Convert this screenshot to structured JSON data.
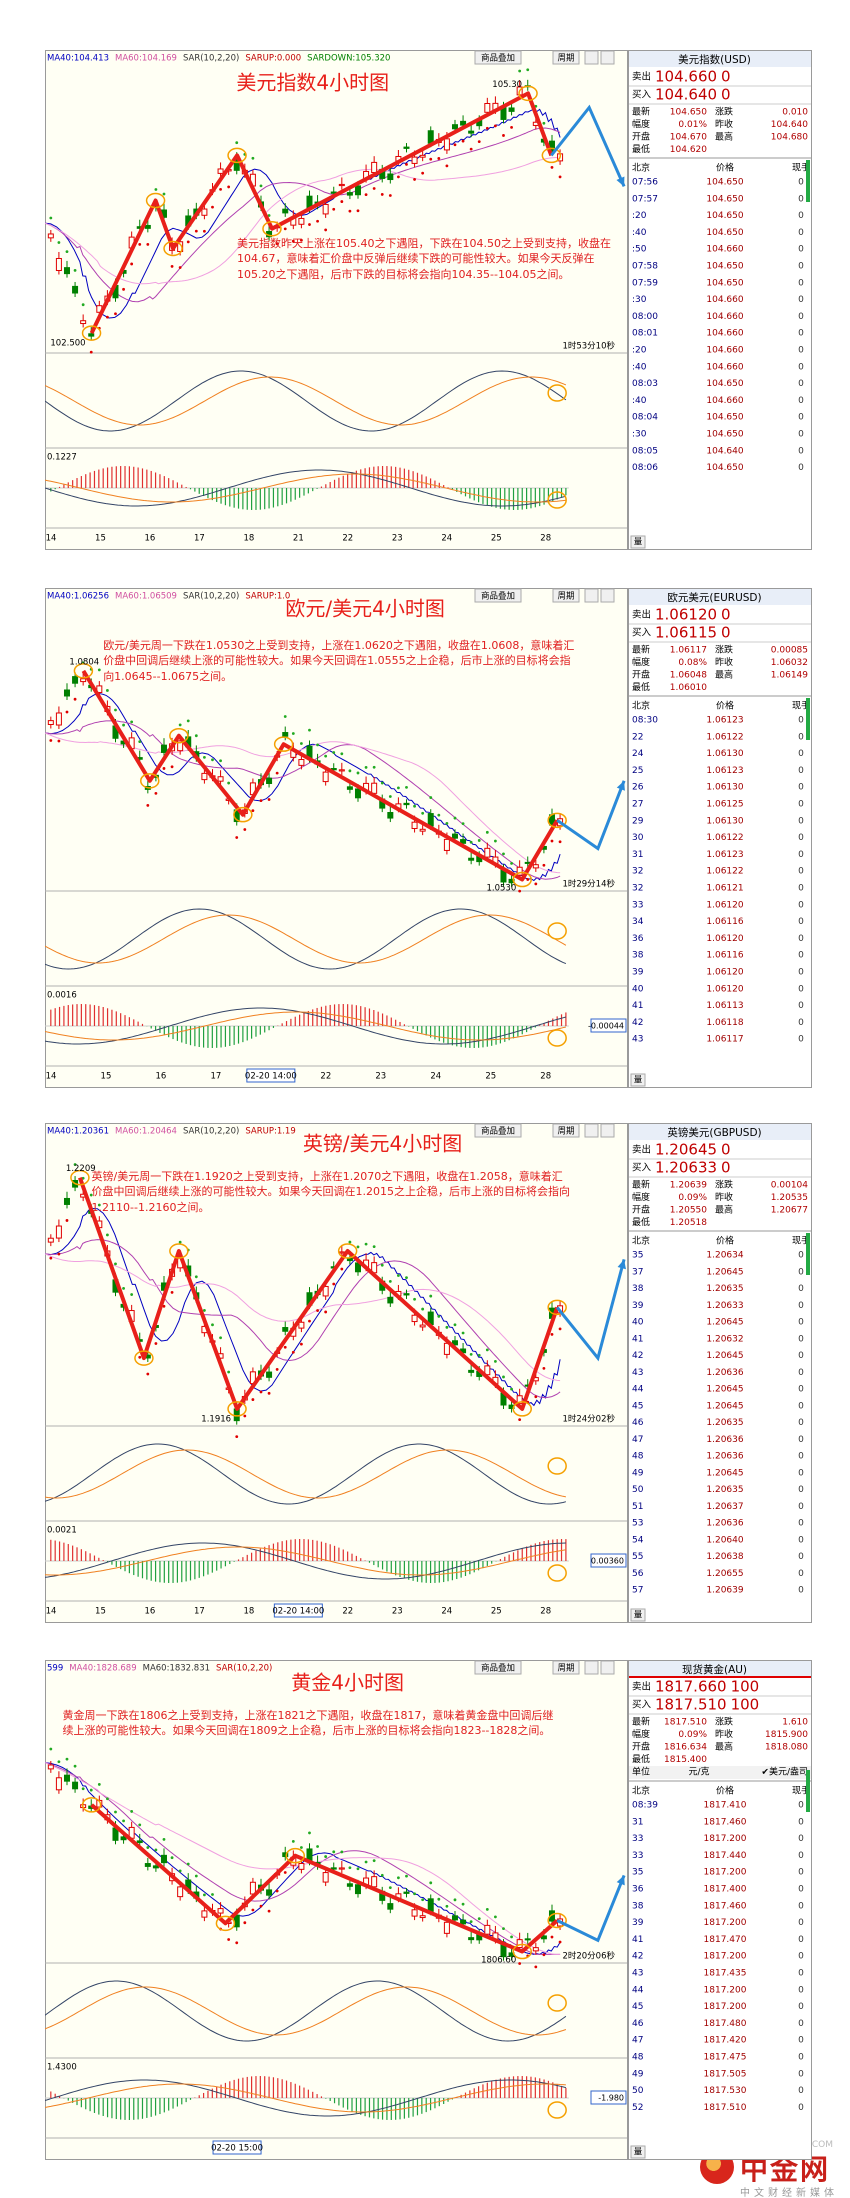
{
  "panels": [
    {
      "title": "美元指数4小时图",
      "legend": [
        "MA40:104.413",
        "MA60:104.169",
        "SAR(10,2,20)",
        "SARUP:0.000",
        "SARDOWN:105.320"
      ],
      "toolbar": [
        "商品叠加",
        "周期"
      ],
      "comment": "美元指数昨天上涨在105.40之下遇阻，下跌在104.50之上受到支持，收盘在104.67，意味着汇价盘中反弹后继续下跌的可能性较大。如果今天反弹在105.20之下遇阻，后市下跌的目标将会指向104.35--104.05之间。",
      "high_label": "105.30",
      "low_label": "102.500",
      "countdown": "1时53分10秒",
      "indicator_label": "0.1227",
      "dates": [
        "14",
        "15",
        "16",
        "17",
        "18",
        "21",
        "22",
        "23",
        "24",
        "25",
        "28"
      ],
      "quote": {
        "name": "美元指数(USD)",
        "sell": [
          "卖出",
          "104.660",
          "0"
        ],
        "buy": [
          "买入",
          "104.640",
          "0"
        ],
        "stats": [
          [
            "最新",
            "104.650",
            "涨跌",
            "0.010"
          ],
          [
            "幅度",
            "0.01%",
            "昨收",
            "104.640"
          ],
          [
            "开盘",
            "104.670",
            "最高",
            "104.680"
          ],
          [
            "最低",
            "104.620"
          ]
        ],
        "tick_header": [
          "北京",
          "价格",
          "现手"
        ],
        "ticks": [
          [
            "07:56",
            "104.650",
            "0"
          ],
          [
            "07:57",
            "104.650",
            "0"
          ],
          [
            ":20",
            "104.650",
            "0"
          ],
          [
            ":40",
            "104.650",
            "0"
          ],
          [
            ":50",
            "104.660",
            "0"
          ],
          [
            "07:58",
            "104.650",
            "0"
          ],
          [
            "07:59",
            "104.650",
            "0"
          ],
          [
            ":30",
            "104.660",
            "0"
          ],
          [
            "08:00",
            "104.660",
            "0"
          ],
          [
            "08:01",
            "104.660",
            "0"
          ],
          [
            ":20",
            "104.660",
            "0"
          ],
          [
            ":40",
            "104.660",
            "0"
          ],
          [
            "08:03",
            "104.650",
            "0"
          ],
          [
            ":40",
            "104.660",
            "0"
          ],
          [
            "08:04",
            "104.650",
            "0"
          ],
          [
            ":30",
            "104.650",
            "0"
          ],
          [
            "08:05",
            "104.640",
            "0"
          ],
          [
            "08:06",
            "104.650",
            "0"
          ]
        ],
        "footer": "量"
      }
    },
    {
      "title": "欧元/美元4小时图",
      "legend": [
        "MA40:1.06256",
        "MA60:1.06509",
        "SAR(10,2,20)",
        "SARUP:1.0"
      ],
      "toolbar": [
        "商品叠加",
        "周期"
      ],
      "comment": "欧元/美元周一下跌在1.0530之上受到支持，上涨在1.0620之下遇阻，收盘在1.0608，意味着汇价盘中回调后继续上涨的可能性较大。如果今天回调在1.0555之上企稳，后市上涨的目标将会指向1.0645--1.0675之间。",
      "high_label": "1.0804",
      "low_label": "1.0530",
      "countdown": "1时29分14秒",
      "indicator_label": "0.0016",
      "indicator_box": "-0.00044",
      "dates": [
        "14",
        "15",
        "16",
        "17",
        "02-20 14:00",
        "22",
        "23",
        "24",
        "25",
        "28"
      ],
      "quote": {
        "name": "欧元美元(EURUSD)",
        "sell": [
          "卖出",
          "1.06120",
          "0"
        ],
        "buy": [
          "买入",
          "1.06115",
          "0"
        ],
        "stats": [
          [
            "最新",
            "1.06117",
            "涨跌",
            "0.00085"
          ],
          [
            "幅度",
            "0.08%",
            "昨收",
            "1.06032"
          ],
          [
            "开盘",
            "1.06048",
            "最高",
            "1.06149"
          ],
          [
            "最低",
            "1.06010"
          ]
        ],
        "tick_header": [
          "北京",
          "价格",
          "现手"
        ],
        "ticks": [
          [
            "08:30",
            "1.06123",
            "0"
          ],
          [
            "22",
            "1.06122",
            "0"
          ],
          [
            "24",
            "1.06130",
            "0"
          ],
          [
            "25",
            "1.06123",
            "0"
          ],
          [
            "26",
            "1.06130",
            "0"
          ],
          [
            "27",
            "1.06125",
            "0"
          ],
          [
            "29",
            "1.06130",
            "0"
          ],
          [
            "30",
            "1.06122",
            "0"
          ],
          [
            "31",
            "1.06123",
            "0"
          ],
          [
            "32",
            "1.06122",
            "0"
          ],
          [
            "32",
            "1.06121",
            "0"
          ],
          [
            "33",
            "1.06120",
            "0"
          ],
          [
            "34",
            "1.06116",
            "0"
          ],
          [
            "36",
            "1.06120",
            "0"
          ],
          [
            "38",
            "1.06116",
            "0"
          ],
          [
            "39",
            "1.06120",
            "0"
          ],
          [
            "40",
            "1.06120",
            "0"
          ],
          [
            "41",
            "1.06113",
            "0"
          ],
          [
            "42",
            "1.06118",
            "0"
          ],
          [
            "43",
            "1.06117",
            "0"
          ]
        ],
        "footer": "量"
      }
    },
    {
      "title": "英镑/美元4小时图",
      "legend": [
        "MA40:1.20361",
        "MA60:1.20464",
        "SAR(10,2,20)",
        "SARUP:1.19"
      ],
      "toolbar": [
        "商品叠加",
        "周期"
      ],
      "comment": "英镑/美元周一下跌在1.1920之上受到支持，上涨在1.2070之下遇阻，收盘在1.2058，意味着汇价盘中回调后继续上涨的可能性较大。如果今天回调在1.2015之上企稳，后市上涨的目标将会指向1.2110--1.2160之间。",
      "high_label": "1.2209",
      "low_label": "1.1916",
      "countdown": "1时24分02秒",
      "indicator_label": "0.0021",
      "indicator_box": "0.00360",
      "dates": [
        "14",
        "15",
        "16",
        "17",
        "18",
        "02-20 14:00",
        "22",
        "23",
        "24",
        "25",
        "28"
      ],
      "quote": {
        "name": "英镑美元(GBPUSD)",
        "sell": [
          "卖出",
          "1.20645",
          "0"
        ],
        "buy": [
          "买入",
          "1.20633",
          "0"
        ],
        "stats": [
          [
            "最新",
            "1.20639",
            "涨跌",
            "0.00104"
          ],
          [
            "幅度",
            "0.09%",
            "昨收",
            "1.20535"
          ],
          [
            "开盘",
            "1.20550",
            "最高",
            "1.20677"
          ],
          [
            "最低",
            "1.20518"
          ]
        ],
        "tick_header": [
          "北京",
          "价格",
          "现手"
        ],
        "ticks": [
          [
            "35",
            "1.20634",
            "0"
          ],
          [
            "37",
            "1.20645",
            "0"
          ],
          [
            "38",
            "1.20635",
            "0"
          ],
          [
            "39",
            "1.20633",
            "0"
          ],
          [
            "40",
            "1.20645",
            "0"
          ],
          [
            "41",
            "1.20632",
            "0"
          ],
          [
            "42",
            "1.20645",
            "0"
          ],
          [
            "43",
            "1.20636",
            "0"
          ],
          [
            "44",
            "1.20645",
            "0"
          ],
          [
            "45",
            "1.20645",
            "0"
          ],
          [
            "46",
            "1.20635",
            "0"
          ],
          [
            "47",
            "1.20636",
            "0"
          ],
          [
            "48",
            "1.20636",
            "0"
          ],
          [
            "49",
            "1.20645",
            "0"
          ],
          [
            "50",
            "1.20635",
            "0"
          ],
          [
            "51",
            "1.20637",
            "0"
          ],
          [
            "53",
            "1.20636",
            "0"
          ],
          [
            "54",
            "1.20640",
            "0"
          ],
          [
            "55",
            "1.20638",
            "0"
          ],
          [
            "56",
            "1.20655",
            "0"
          ],
          [
            "57",
            "1.20639",
            "0"
          ]
        ],
        "footer": "量"
      }
    },
    {
      "title": "黄金4小时图",
      "legend": [
        "599",
        "MA40:1828.689",
        "MA60:1832.831",
        "SAR(10,2,20)"
      ],
      "toolbar": [
        "商品叠加",
        "周期"
      ],
      "comment": "黄金周一下跌在1806之上受到支持，上涨在1821之下遇阻，收盘在1817，意味着黄金盘中回调后继续上涨的可能性较大。如果今天回调在1809之上企稳，后市上涨的目标将会指向1823--1828之间。",
      "low_label": "1806.60",
      "countdown": "2时20分06秒",
      "indicator_label": "1.4300",
      "indicator_box": "-1.980",
      "dates": [
        "02-20 15:00"
      ],
      "quote": {
        "name": "现货黄金(AU)",
        "sell": [
          "卖出",
          "1817.660",
          "100"
        ],
        "buy": [
          "买入",
          "1817.510",
          "100"
        ],
        "stats": [
          [
            "最新",
            "1817.510",
            "涨跌",
            "1.610"
          ],
          [
            "幅度",
            "0.09%",
            "昨收",
            "1815.900"
          ],
          [
            "开盘",
            "1816.634",
            "最高",
            "1818.080"
          ],
          [
            "最低",
            "1815.400"
          ]
        ],
        "unit": [
          "单位",
          "元/克",
          "✔美元/盎司"
        ],
        "tick_header": [
          "北京",
          "价格",
          "现手"
        ],
        "ticks": [
          [
            "08:39",
            "1817.410",
            "0"
          ],
          [
            "31",
            "1817.460",
            "0"
          ],
          [
            "33",
            "1817.200",
            "0"
          ],
          [
            "33",
            "1817.440",
            "0"
          ],
          [
            "35",
            "1817.200",
            "0"
          ],
          [
            "36",
            "1817.400",
            "0"
          ],
          [
            "38",
            "1817.460",
            "0"
          ],
          [
            "39",
            "1817.200",
            "0"
          ],
          [
            "41",
            "1817.470",
            "0"
          ],
          [
            "42",
            "1817.200",
            "0"
          ],
          [
            "43",
            "1817.435",
            "0"
          ],
          [
            "44",
            "1817.200",
            "0"
          ],
          [
            "45",
            "1817.200",
            "0"
          ],
          [
            "46",
            "1817.480",
            "0"
          ],
          [
            "47",
            "1817.420",
            "0"
          ],
          [
            "48",
            "1817.475",
            "0"
          ],
          [
            "49",
            "1817.505",
            "0"
          ],
          [
            "50",
            "1817.530",
            "0"
          ],
          [
            "52",
            "1817.510",
            "0"
          ]
        ],
        "footer": "量"
      }
    }
  ],
  "logo": {
    "name": "中金网",
    "domain": "CNGOLD.COM",
    "slogan": "中文财经新媒体"
  }
}
